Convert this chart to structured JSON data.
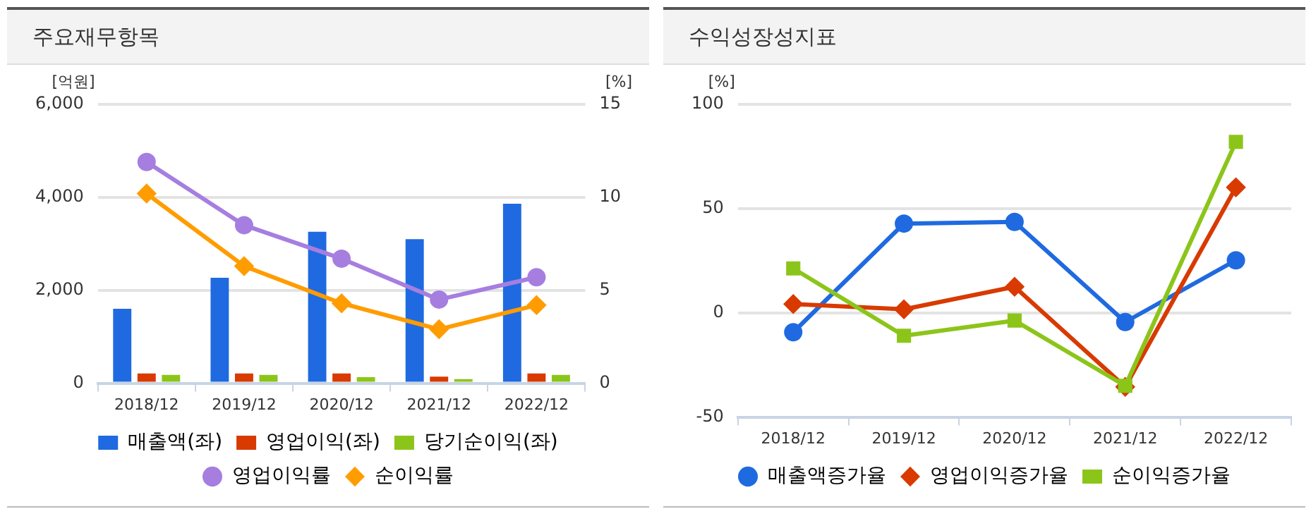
{
  "chart_data": [
    {
      "type": "bar",
      "title": "주요재무항목",
      "ylabel": "[억원]",
      "y2label": "[%]",
      "categories": [
        "2018/12",
        "2019/12",
        "2020/12",
        "2021/12",
        "2022/12"
      ],
      "series": [
        {
          "name": "매출액(좌)",
          "color": "#1f6ae0",
          "values": [
            1600,
            2270,
            3260,
            3100,
            3860
          ]
        },
        {
          "name": "영업이익(좌)",
          "color": "#d83a00",
          "values": [
            210,
            210,
            210,
            140,
            210
          ]
        },
        {
          "name": "당기순이익(좌)",
          "color": "#8cc51a",
          "values": [
            180,
            180,
            130,
            90,
            180
          ]
        },
        {
          "name": "영업이익률",
          "type": "line",
          "axis": "y2",
          "marker": "circle",
          "color": "#a67ee0",
          "values": [
            11.9,
            8.5,
            6.7,
            4.5,
            5.7
          ]
        },
        {
          "name": "순이익률",
          "type": "line",
          "axis": "y2",
          "marker": "diamond",
          "color": "#ff9c00",
          "values": [
            10.2,
            6.3,
            4.3,
            2.9,
            4.2
          ]
        }
      ],
      "ylim": [
        0,
        6000
      ],
      "yticks": [
        0,
        {
          "value": 2000,
          "label": "2,000"
        },
        {
          "value": 4000,
          "label": "4,000"
        },
        {
          "value": 6000,
          "label": "6,000"
        }
      ],
      "y2lim": [
        0,
        15
      ],
      "y2ticks": [
        0,
        5,
        10,
        15
      ],
      "grid": "y",
      "legend": "bottom"
    },
    {
      "type": "line",
      "title": "수익성장성지표",
      "ylabel": "[%]",
      "categories": [
        "2018/12",
        "2019/12",
        "2020/12",
        "2021/12",
        "2022/12"
      ],
      "series": [
        {
          "name": "매출액증가율",
          "marker": "circle",
          "color": "#1f6ae0",
          "values": [
            -9.3,
            42.8,
            43.6,
            -4.4,
            25.2
          ]
        },
        {
          "name": "영업이익증가율",
          "marker": "diamond",
          "color": "#d83a00",
          "values": [
            4.2,
            1.7,
            12.5,
            -35.5,
            60.2
          ]
        },
        {
          "name": "순이익증가율",
          "marker": "square",
          "color": "#8cc51a",
          "values": [
            21.3,
            -11,
            -3.7,
            -35,
            82
          ]
        }
      ],
      "ylim": [
        -50,
        100
      ],
      "yticks": [
        -50,
        0,
        50,
        100
      ],
      "grid": "y",
      "legend": "bottom"
    }
  ]
}
